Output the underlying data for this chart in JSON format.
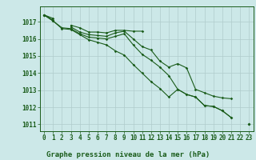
{
  "title": "Graphe pression niveau de la mer (hPa)",
  "bg_color": "#cce8e8",
  "grid_major_color": "#b0cccc",
  "grid_minor_color": "#c8e0e0",
  "line_color": "#1a5c1a",
  "xvalues": [
    0,
    1,
    2,
    3,
    4,
    5,
    6,
    7,
    8,
    9,
    10,
    11,
    12,
    13,
    14,
    15,
    16,
    17,
    18,
    19,
    20,
    21,
    22,
    23
  ],
  "line1": [
    1017.4,
    1017.2,
    null,
    1016.8,
    1016.65,
    1016.4,
    1016.4,
    1016.35,
    1016.5,
    1016.5,
    1016.45,
    1016.45,
    null,
    null,
    null,
    null,
    null,
    null,
    null,
    null,
    null,
    null,
    null,
    null
  ],
  "line2": [
    1017.4,
    1017.1,
    null,
    1016.7,
    1016.4,
    1016.25,
    1016.2,
    1016.15,
    1016.35,
    1016.45,
    1016.0,
    1015.55,
    1015.35,
    1014.7,
    1014.35,
    1014.55,
    1014.3,
    1013.05,
    1012.85,
    1012.65,
    1012.55,
    1012.5,
    null,
    1011.0
  ],
  "line3": [
    1017.4,
    1017.05,
    1016.65,
    1016.6,
    1016.3,
    1016.1,
    1016.05,
    1016.0,
    1016.15,
    1016.3,
    1015.65,
    1015.1,
    1014.75,
    1014.35,
    1013.85,
    1013.05,
    1012.75,
    1012.6,
    1012.1,
    1012.05,
    1011.8,
    1011.4,
    null,
    1011.0
  ],
  "line4": [
    1017.4,
    1017.05,
    1016.6,
    1016.55,
    1016.25,
    1015.95,
    1015.8,
    1015.65,
    1015.3,
    1015.05,
    1014.5,
    1014.0,
    1013.5,
    1013.1,
    1012.6,
    1013.05,
    1012.75,
    1012.6,
    1012.1,
    1012.05,
    1011.8,
    1011.4,
    null,
    1011.0
  ],
  "ylim": [
    1010.6,
    1017.9
  ],
  "yticks": [
    1011,
    1012,
    1013,
    1014,
    1015,
    1016,
    1017
  ],
  "tick_fontsize": 5.5
}
